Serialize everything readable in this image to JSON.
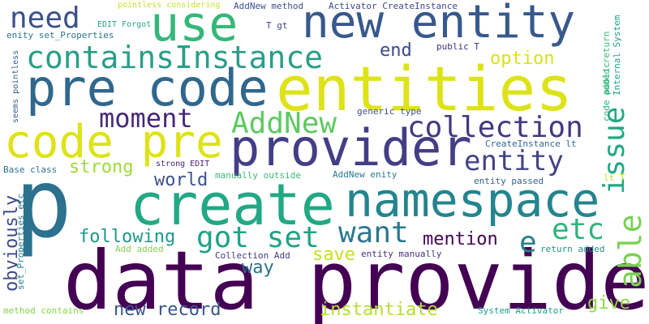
{
  "word_cloud": {
    "words": [
      {
        "text": "p",
        "color": "#2c728e"
      },
      {
        "text": "data provider",
        "color": "#440154"
      },
      {
        "text": "entities",
        "color": "#dde318"
      },
      {
        "text": "create",
        "color": "#22a884"
      },
      {
        "text": "provider",
        "color": "#433e85"
      },
      {
        "text": "pre code",
        "color": "#30678d"
      },
      {
        "text": "code pre",
        "color": "#dde318"
      },
      {
        "text": "new entity",
        "color": "#38598c"
      },
      {
        "text": "namespace",
        "color": "#25848e"
      },
      {
        "text": "use",
        "color": "#35b779"
      },
      {
        "text": "containsInstance",
        "color": "#2a9e87"
      },
      {
        "text": "need",
        "color": "#3b518b"
      },
      {
        "text": "collection",
        "color": "#453781"
      },
      {
        "text": "AddNew",
        "color": "#5ec962"
      },
      {
        "text": "moment",
        "color": "#482878"
      },
      {
        "text": "entity",
        "color": "#414487"
      },
      {
        "text": "got set",
        "color": "#20a386"
      },
      {
        "text": "want",
        "color": "#2a788e"
      },
      {
        "text": "able",
        "color": "#7ad151"
      },
      {
        "text": "issue",
        "color": "#22a884"
      },
      {
        "text": "etc",
        "color": "#2fb47c"
      },
      {
        "text": "e",
        "color": "#26828e"
      },
      {
        "text": "end",
        "color": "#3e4989"
      },
      {
        "text": "option",
        "color": "#d8e219"
      },
      {
        "text": "world",
        "color": "#3b528b"
      },
      {
        "text": "strong",
        "color": "#a0da39"
      },
      {
        "text": "following",
        "color": "#1f988b"
      },
      {
        "text": "obviously",
        "color": "#3f4889"
      },
      {
        "text": "mention",
        "color": "#440154"
      },
      {
        "text": "save",
        "color": "#c8e020"
      },
      {
        "text": "way",
        "color": "#2d708e"
      },
      {
        "text": "new record",
        "color": "#39558c"
      },
      {
        "text": "instantiate",
        "color": "#b5de2b"
      },
      {
        "text": "give",
        "color": "#8fd744"
      },
      {
        "text": "AddNew method",
        "color": "#3b528b"
      },
      {
        "text": "Activator CreateInstance",
        "color": "#3e4a89"
      },
      {
        "text": "EDIT Forgot",
        "color": "#22a785"
      },
      {
        "text": "pointless considering",
        "color": "#c2df23"
      },
      {
        "text": "strong EDIT",
        "color": "#482677"
      },
      {
        "text": "T gt",
        "color": "#3f4788"
      },
      {
        "text": "enity set_Properties",
        "color": "#2a768e"
      },
      {
        "text": "seems pointless",
        "color": "#35608d"
      },
      {
        "text": "public T",
        "color": "#472e7c"
      },
      {
        "text": "code public",
        "color": "#27ad81"
      },
      {
        "text": "added return",
        "color": "#3aba76"
      },
      {
        "text": "Internal System",
        "color": "#1fa088"
      },
      {
        "text": "generic type",
        "color": "#3c4f8a"
      },
      {
        "text": "CreateInstance lt",
        "color": "#31688e"
      },
      {
        "text": "lt T",
        "color": "#c5e021"
      },
      {
        "text": "entity passed",
        "color": "#34618d"
      },
      {
        "text": "Base class",
        "color": "#2d718e"
      },
      {
        "text": "manually outside",
        "color": "#38b977"
      },
      {
        "text": "AddNew enity",
        "color": "#2a778e"
      },
      {
        "text": "set_Properties etc",
        "color": "#287c8e"
      },
      {
        "text": "Add added",
        "color": "#81d34d"
      },
      {
        "text": "Collection Add",
        "color": "#443983"
      },
      {
        "text": "entity manually",
        "color": "#46307e"
      },
      {
        "text": "return added",
        "color": "#21918c"
      },
      {
        "text": "method contains",
        "color": "#84d44b"
      },
      {
        "text": "System Activator",
        "color": "#1f9e89"
      }
    ]
  }
}
